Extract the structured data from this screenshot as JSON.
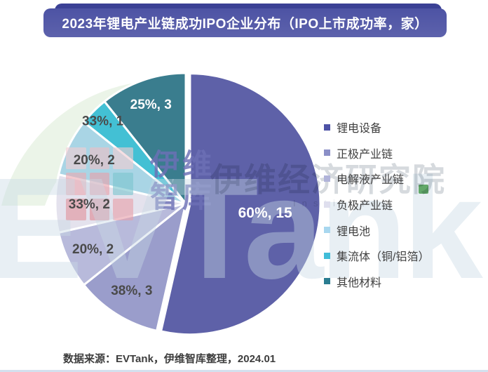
{
  "title": "2023年锂电产业链成功IPO企业分布（IPO上市成功率，家）",
  "source_note": "数据来源：EVTank，伊维智库整理，2024.01",
  "watermarks": {
    "logo_cn_line1": "伊维",
    "logo_cn_line2": "智库",
    "institute_cn": "伊维经济研究院",
    "institute_en": "Institute",
    "brand": "EVTank",
    "logo_grid_colors": [
      "#f2cdd2",
      "#eebfc6",
      "#f2cdd2",
      "#ecaab3",
      "#e8a0aa",
      "#7cc6cf",
      "#e2949e",
      "#de8a95",
      "#e8a0aa"
    ]
  },
  "colors": {
    "banner_bg": "#565ba9",
    "banner_shadow": "#3b4195",
    "label_dark": "#4a4a4a",
    "label_light": "#ffffff",
    "legend_text": "#3f3f3f",
    "source_text": "#3d3d3d",
    "swoosh_green": "#ebf4e8",
    "brand_green": "#4a9b50"
  },
  "chart_data": {
    "type": "pie",
    "title": "2023年锂电产业链成功IPO企业分布（IPO上市成功率，家）",
    "unit": "家",
    "legend_position": "right",
    "start_angle_deg": 0,
    "direction": "clockwise",
    "slices": [
      {
        "label": "锂电设备",
        "success_rate": "60%",
        "count": 15,
        "data_label": "60%, 15",
        "color": "#5e61a8",
        "legend_color": "#4d52a6",
        "label_style": "light"
      },
      {
        "label": "正极产业链",
        "success_rate": "38%",
        "count": 3,
        "data_label": "38%, 3",
        "color": "#9a9dcb",
        "legend_color": "#8b8fc7",
        "label_style": "dark"
      },
      {
        "label": "电解液产业链",
        "success_rate": "20%",
        "count": 2,
        "data_label": "20%, 2",
        "color": "#b8badb",
        "legend_color": "#b0b3d9",
        "label_style": "dark"
      },
      {
        "label": "负极产业链",
        "success_rate": "33%",
        "count": 2,
        "data_label": "33%, 2",
        "color": "#e4e2ed",
        "legend_color": "#dfdfee",
        "label_style": "dark"
      },
      {
        "label": "锂电池",
        "success_rate": "20%",
        "count": 2,
        "data_label": "20%, 2",
        "color": "#a9d5e5",
        "legend_color": "#a8d7ef",
        "label_style": "dark"
      },
      {
        "label": "集流体（铜/铝箔）",
        "success_rate": "33%",
        "count": 1,
        "data_label": "33%, 1",
        "color": "#43c0d4",
        "legend_color": "#41bdd8",
        "label_style": "dark"
      },
      {
        "label": "其他材料",
        "success_rate": "25%",
        "count": 3,
        "data_label": "25%, 3",
        "color": "#3a7d8e",
        "legend_color": "#2b7d91",
        "label_style": "light"
      }
    ]
  }
}
